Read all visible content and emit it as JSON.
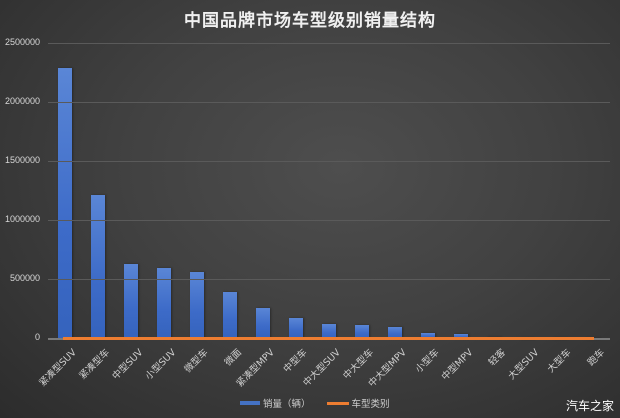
{
  "title": "中国品牌市场车型级别销量结构",
  "watermark": "汽车之家",
  "legend": {
    "series1": "销量（辆）",
    "series2": "车型类别"
  },
  "colors": {
    "bar": "#4472c4",
    "line": "#ed7d31",
    "background": "#404040"
  },
  "y_ticks": [
    "2500000",
    "2000000",
    "1500000",
    "1000000",
    "500000",
    "0"
  ],
  "chart_data": {
    "type": "bar",
    "title": "中国品牌市场车型级别销量结构",
    "xlabel": "",
    "ylabel": "",
    "ylim": [
      0,
      2500000
    ],
    "grid": true,
    "legend_position": "bottom",
    "categories": [
      "紧凑型SUV",
      "紧凑型车",
      "中型SUV",
      "小型SUV",
      "微型车",
      "微面",
      "紧凑型MPV",
      "中型车",
      "中大型SUV",
      "中大型车",
      "中大型MPV",
      "小型车",
      "中型MPV",
      "轻客",
      "大型SUV",
      "大型车",
      "跑车"
    ],
    "series": [
      {
        "name": "销量（辆）",
        "type": "bar",
        "values": [
          2290000,
          1210000,
          625000,
          595000,
          560000,
          390000,
          255000,
          170000,
          120000,
          110000,
          90000,
          45000,
          30000,
          5000,
          3000,
          2000,
          1000
        ]
      },
      {
        "name": "车型类别",
        "type": "line",
        "values": [
          0,
          0,
          0,
          0,
          0,
          0,
          0,
          0,
          0,
          0,
          0,
          0,
          0,
          0,
          0,
          0,
          0
        ]
      }
    ]
  }
}
